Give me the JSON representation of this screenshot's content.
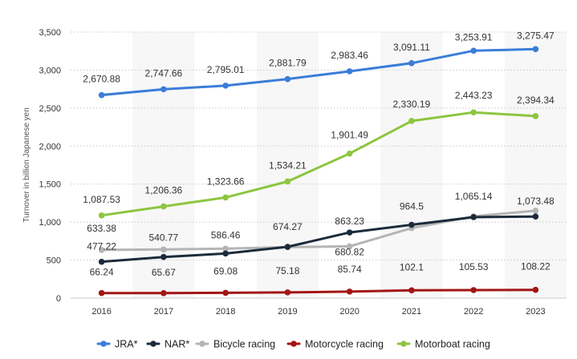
{
  "chart_data": {
    "type": "line",
    "ylabel": "Turnover in billion Japanese yen",
    "ylim": [
      0,
      3500
    ],
    "yticks": [
      0,
      500,
      1000,
      1500,
      2000,
      2500,
      3000,
      3500
    ],
    "ytick_labels": [
      "0",
      "500",
      "1,000",
      "1,500",
      "2,000",
      "2,500",
      "3,000",
      "3,500"
    ],
    "categories": [
      "2016",
      "2017",
      "2018",
      "2019",
      "2020",
      "2021",
      "2022",
      "2023"
    ],
    "grid": true,
    "legend_position": "bottom",
    "series": [
      {
        "name": "JRA*",
        "color": "#3b7dd8",
        "values": [
          2670.88,
          2747.66,
          2795.01,
          2881.79,
          2983.46,
          3091.11,
          3253.91,
          3275.47
        ],
        "labels": [
          "2,670.88",
          "2,747.66",
          "2,795.01",
          "2,881.79",
          "2,983.46",
          "3,091.11",
          "3,253.91",
          "3,275.47"
        ]
      },
      {
        "name": "NAR*",
        "color": "#1c2b3c",
        "values": [
          477.22,
          540.77,
          586.46,
          674.27,
          863.23,
          964.5,
          1065.14,
          1073.48
        ],
        "labels": [
          "477.22",
          "540.77",
          "586.46",
          "674.27",
          "863.23",
          "964.5",
          "1,065.14",
          "1,073.48"
        ]
      },
      {
        "name": "Bicycle racing",
        "color": "#b5b5b5",
        "values": [
          633.38,
          640,
          650,
          670,
          680.82,
          920,
          1075,
          1150
        ],
        "labels": [
          "633.38",
          "",
          "",
          "",
          "680.82",
          "",
          "",
          ""
        ]
      },
      {
        "name": "Motorcycle racing",
        "color": "#a31515",
        "values": [
          66.24,
          65.67,
          69.08,
          75.18,
          85.74,
          102.1,
          105.53,
          108.22
        ],
        "labels": [
          "66.24",
          "65.67",
          "69.08",
          "75.18",
          "85.74",
          "102.1",
          "105.53",
          "108.22"
        ]
      },
      {
        "name": "Motorboat racing",
        "color": "#8cc63f",
        "values": [
          1087.53,
          1206.36,
          1323.66,
          1534.21,
          1901.49,
          2330.19,
          2443.23,
          2394.34
        ],
        "labels": [
          "1,087.53",
          "1,206.36",
          "1,323.66",
          "1,534.21",
          "1,901.49",
          "2,330.19",
          "2,443.23",
          "2,394.34"
        ]
      }
    ]
  }
}
